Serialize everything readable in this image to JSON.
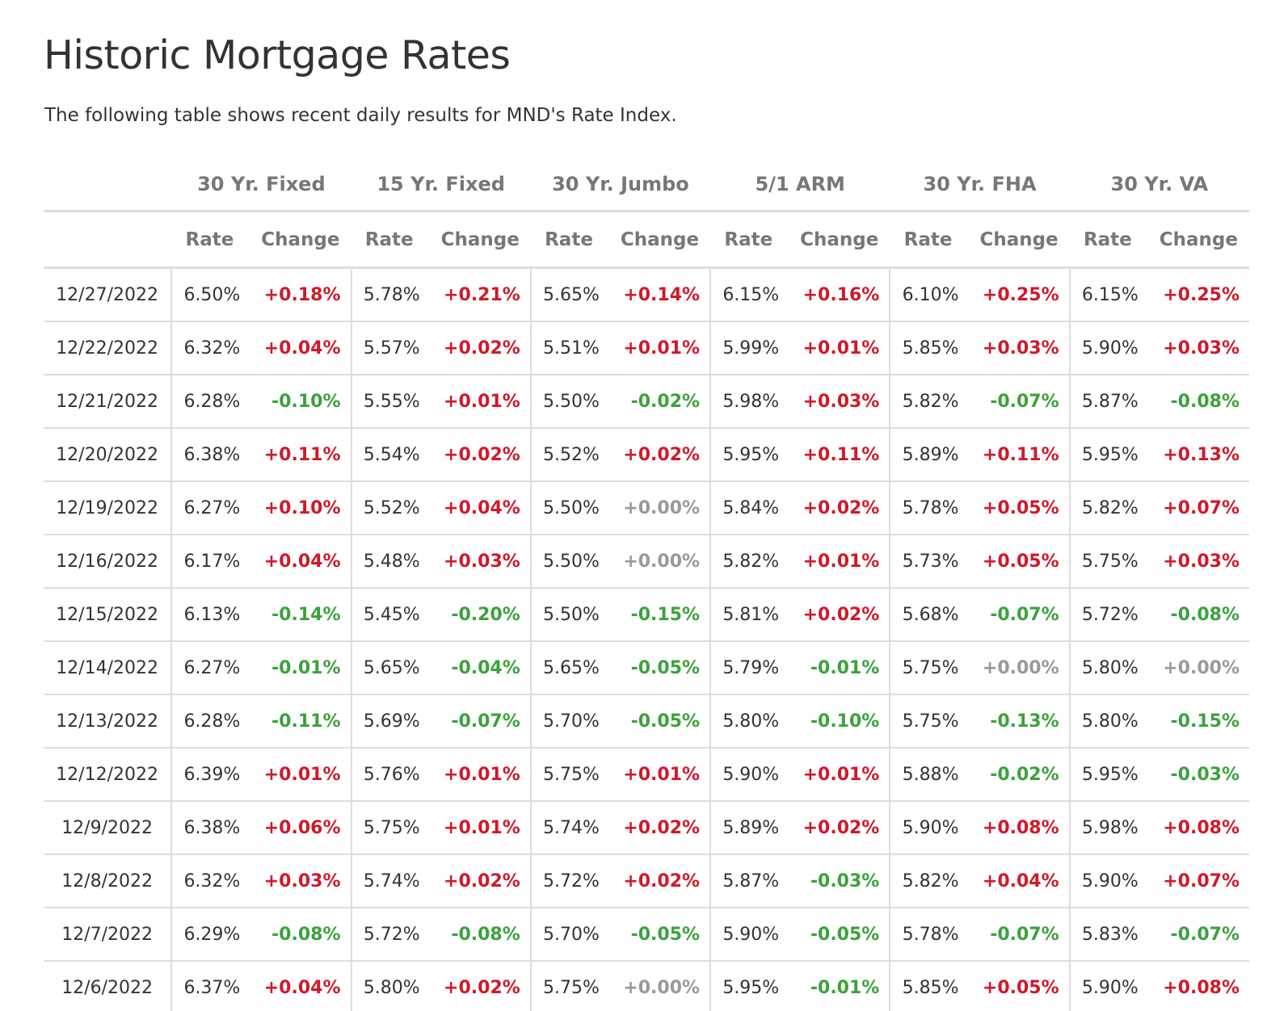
{
  "page": {
    "title": "Historic Mortgage Rates",
    "subtitle": "The following table shows recent daily results for MND's Rate Index."
  },
  "colors": {
    "increase": "#d0192a",
    "decrease": "#3ba23b",
    "unchanged": "#999999",
    "header_text": "#777777",
    "border": "#dddddd"
  },
  "table": {
    "groups": [
      "30 Yr. Fixed",
      "15 Yr. Fixed",
      "30 Yr. Jumbo",
      "5/1 ARM",
      "30 Yr. FHA",
      "30 Yr. VA"
    ],
    "subheaders": {
      "rate": "Rate",
      "change": "Change"
    },
    "rows": [
      {
        "date": "12/27/2022",
        "cells": [
          [
            "6.50%",
            "+0.18%"
          ],
          [
            "5.78%",
            "+0.21%"
          ],
          [
            "5.65%",
            "+0.14%"
          ],
          [
            "6.15%",
            "+0.16%"
          ],
          [
            "6.10%",
            "+0.25%"
          ],
          [
            "6.15%",
            "+0.25%"
          ]
        ]
      },
      {
        "date": "12/22/2022",
        "cells": [
          [
            "6.32%",
            "+0.04%"
          ],
          [
            "5.57%",
            "+0.02%"
          ],
          [
            "5.51%",
            "+0.01%"
          ],
          [
            "5.99%",
            "+0.01%"
          ],
          [
            "5.85%",
            "+0.03%"
          ],
          [
            "5.90%",
            "+0.03%"
          ]
        ]
      },
      {
        "date": "12/21/2022",
        "cells": [
          [
            "6.28%",
            "-0.10%"
          ],
          [
            "5.55%",
            "+0.01%"
          ],
          [
            "5.50%",
            "-0.02%"
          ],
          [
            "5.98%",
            "+0.03%"
          ],
          [
            "5.82%",
            "-0.07%"
          ],
          [
            "5.87%",
            "-0.08%"
          ]
        ]
      },
      {
        "date": "12/20/2022",
        "cells": [
          [
            "6.38%",
            "+0.11%"
          ],
          [
            "5.54%",
            "+0.02%"
          ],
          [
            "5.52%",
            "+0.02%"
          ],
          [
            "5.95%",
            "+0.11%"
          ],
          [
            "5.89%",
            "+0.11%"
          ],
          [
            "5.95%",
            "+0.13%"
          ]
        ]
      },
      {
        "date": "12/19/2022",
        "cells": [
          [
            "6.27%",
            "+0.10%"
          ],
          [
            "5.52%",
            "+0.04%"
          ],
          [
            "5.50%",
            "+0.00%"
          ],
          [
            "5.84%",
            "+0.02%"
          ],
          [
            "5.78%",
            "+0.05%"
          ],
          [
            "5.82%",
            "+0.07%"
          ]
        ]
      },
      {
        "date": "12/16/2022",
        "cells": [
          [
            "6.17%",
            "+0.04%"
          ],
          [
            "5.48%",
            "+0.03%"
          ],
          [
            "5.50%",
            "+0.00%"
          ],
          [
            "5.82%",
            "+0.01%"
          ],
          [
            "5.73%",
            "+0.05%"
          ],
          [
            "5.75%",
            "+0.03%"
          ]
        ]
      },
      {
        "date": "12/15/2022",
        "cells": [
          [
            "6.13%",
            "-0.14%"
          ],
          [
            "5.45%",
            "-0.20%"
          ],
          [
            "5.50%",
            "-0.15%"
          ],
          [
            "5.81%",
            "+0.02%"
          ],
          [
            "5.68%",
            "-0.07%"
          ],
          [
            "5.72%",
            "-0.08%"
          ]
        ]
      },
      {
        "date": "12/14/2022",
        "cells": [
          [
            "6.27%",
            "-0.01%"
          ],
          [
            "5.65%",
            "-0.04%"
          ],
          [
            "5.65%",
            "-0.05%"
          ],
          [
            "5.79%",
            "-0.01%"
          ],
          [
            "5.75%",
            "+0.00%"
          ],
          [
            "5.80%",
            "+0.00%"
          ]
        ]
      },
      {
        "date": "12/13/2022",
        "cells": [
          [
            "6.28%",
            "-0.11%"
          ],
          [
            "5.69%",
            "-0.07%"
          ],
          [
            "5.70%",
            "-0.05%"
          ],
          [
            "5.80%",
            "-0.10%"
          ],
          [
            "5.75%",
            "-0.13%"
          ],
          [
            "5.80%",
            "-0.15%"
          ]
        ]
      },
      {
        "date": "12/12/2022",
        "cells": [
          [
            "6.39%",
            "+0.01%"
          ],
          [
            "5.76%",
            "+0.01%"
          ],
          [
            "5.75%",
            "+0.01%"
          ],
          [
            "5.90%",
            "+0.01%"
          ],
          [
            "5.88%",
            "-0.02%"
          ],
          [
            "5.95%",
            "-0.03%"
          ]
        ]
      },
      {
        "date": "12/9/2022",
        "cells": [
          [
            "6.38%",
            "+0.06%"
          ],
          [
            "5.75%",
            "+0.01%"
          ],
          [
            "5.74%",
            "+0.02%"
          ],
          [
            "5.89%",
            "+0.02%"
          ],
          [
            "5.90%",
            "+0.08%"
          ],
          [
            "5.98%",
            "+0.08%"
          ]
        ]
      },
      {
        "date": "12/8/2022",
        "cells": [
          [
            "6.32%",
            "+0.03%"
          ],
          [
            "5.74%",
            "+0.02%"
          ],
          [
            "5.72%",
            "+0.02%"
          ],
          [
            "5.87%",
            "-0.03%"
          ],
          [
            "5.82%",
            "+0.04%"
          ],
          [
            "5.90%",
            "+0.07%"
          ]
        ]
      },
      {
        "date": "12/7/2022",
        "cells": [
          [
            "6.29%",
            "-0.08%"
          ],
          [
            "5.72%",
            "-0.08%"
          ],
          [
            "5.70%",
            "-0.05%"
          ],
          [
            "5.90%",
            "-0.05%"
          ],
          [
            "5.78%",
            "-0.07%"
          ],
          [
            "5.83%",
            "-0.07%"
          ]
        ]
      },
      {
        "date": "12/6/2022",
        "cells": [
          [
            "6.37%",
            "+0.04%"
          ],
          [
            "5.80%",
            "+0.02%"
          ],
          [
            "5.75%",
            "+0.00%"
          ],
          [
            "5.95%",
            "-0.01%"
          ],
          [
            "5.85%",
            "+0.05%"
          ],
          [
            "5.90%",
            "+0.08%"
          ]
        ]
      }
    ]
  }
}
